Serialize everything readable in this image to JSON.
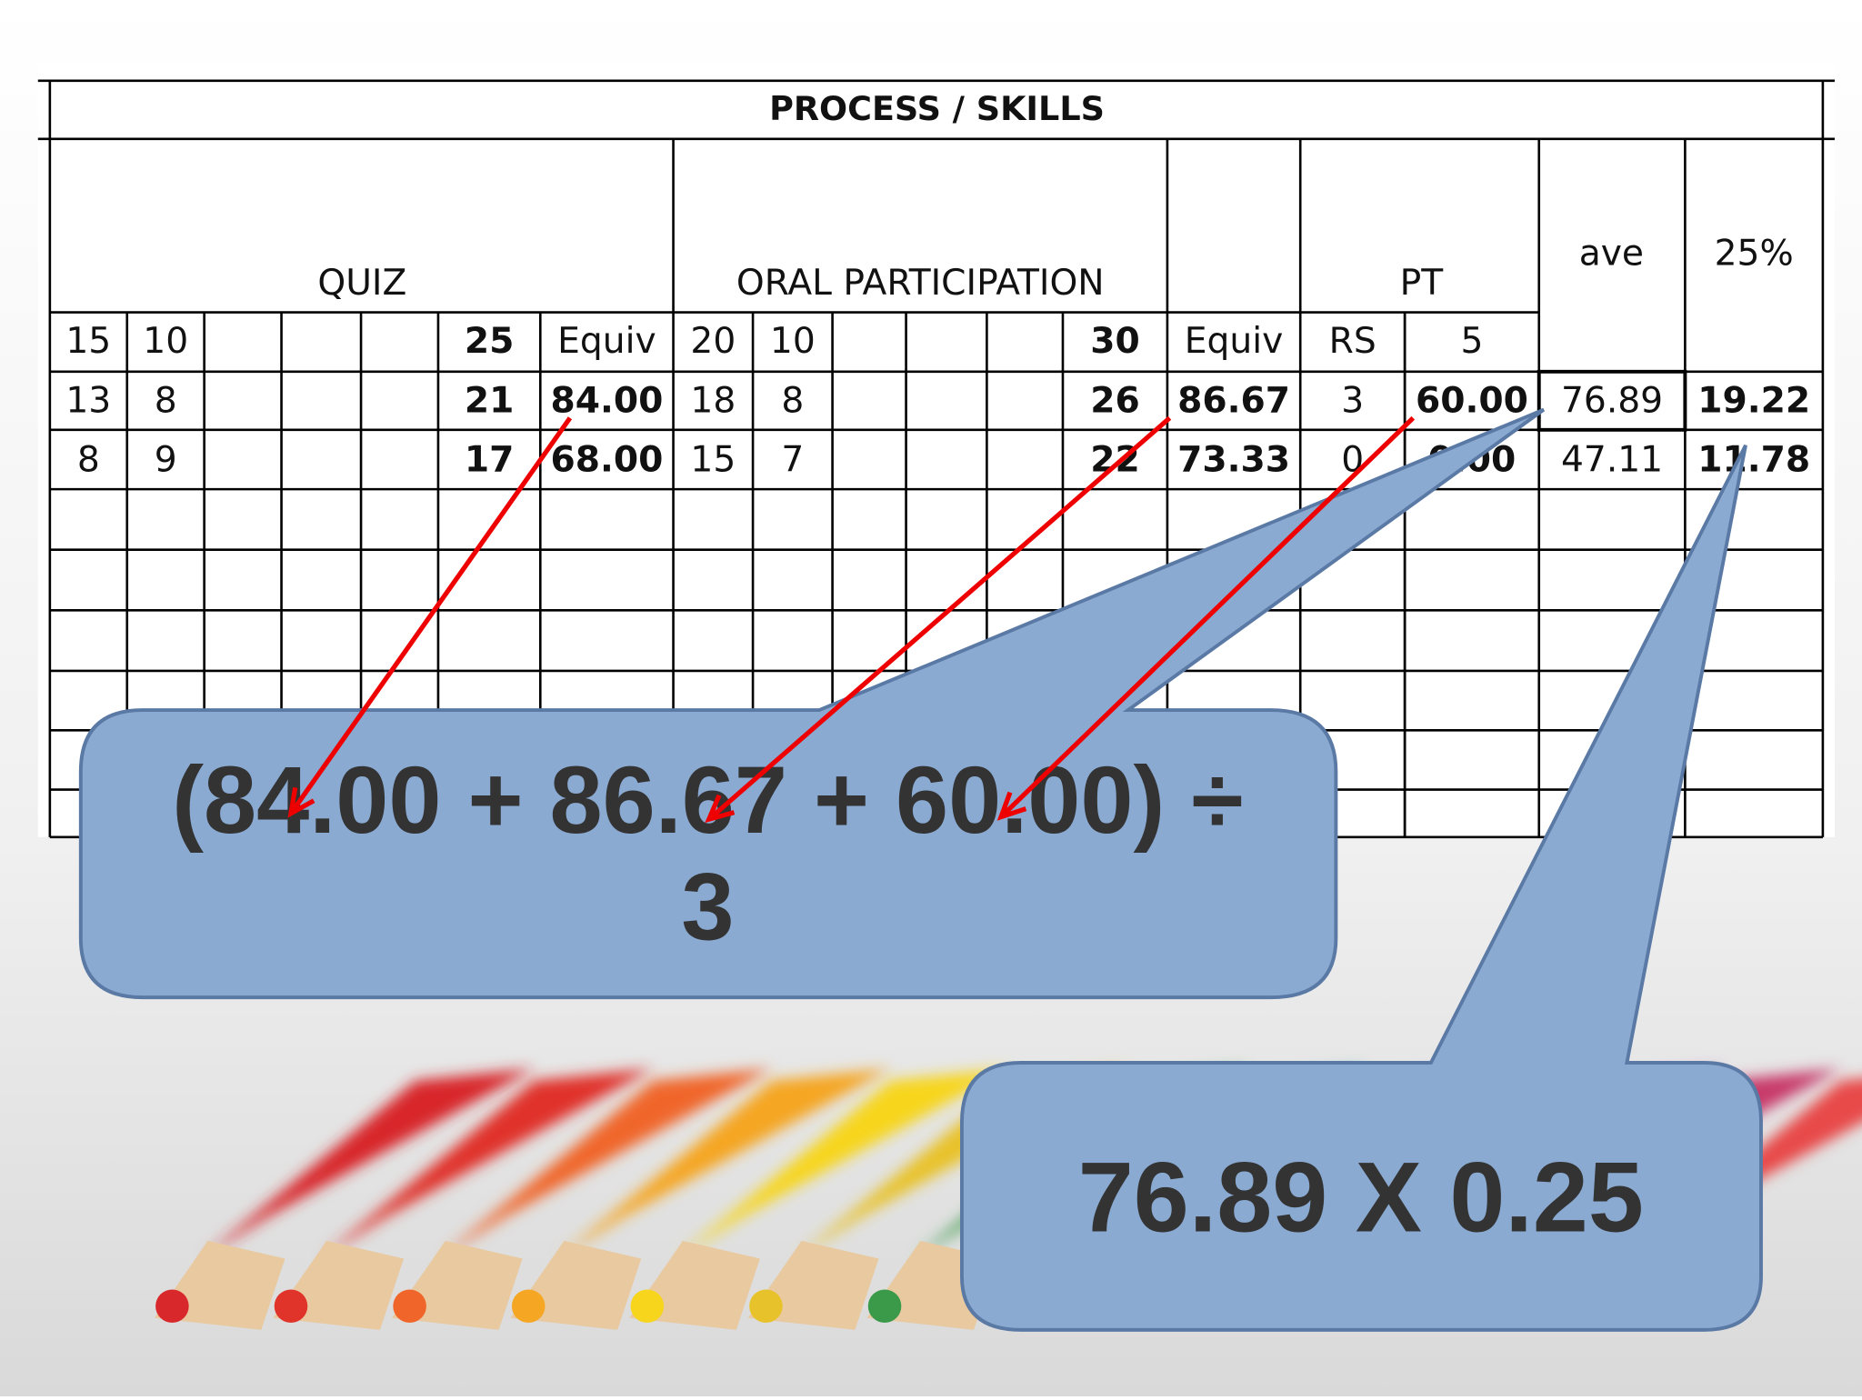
{
  "table": {
    "title": "PROCESS / SKILLS",
    "groups": [
      "QUIZ",
      "ORAL PARTICIPATION",
      "PT",
      "ave",
      "25%"
    ],
    "header_row": [
      "15",
      "10",
      "25",
      "Equiv",
      "20",
      "10",
      "30",
      "Equiv",
      "RS",
      "5"
    ],
    "rows": [
      [
        "13",
        "8",
        "21",
        "84.00",
        "18",
        "8",
        "26",
        "86.67",
        "3",
        "60.00",
        "76.89",
        "19.22"
      ],
      [
        "8",
        "9",
        "17",
        "68.00",
        "15",
        "7",
        "22",
        "73.33",
        "0",
        "0.00",
        "47.11",
        "11.78"
      ]
    ]
  },
  "callouts": [
    {
      "lines": [
        "(84.00 + 86.67 + 60.00) ÷",
        "3"
      ]
    },
    {
      "lines": [
        "76.89 X 0.25"
      ]
    }
  ]
}
